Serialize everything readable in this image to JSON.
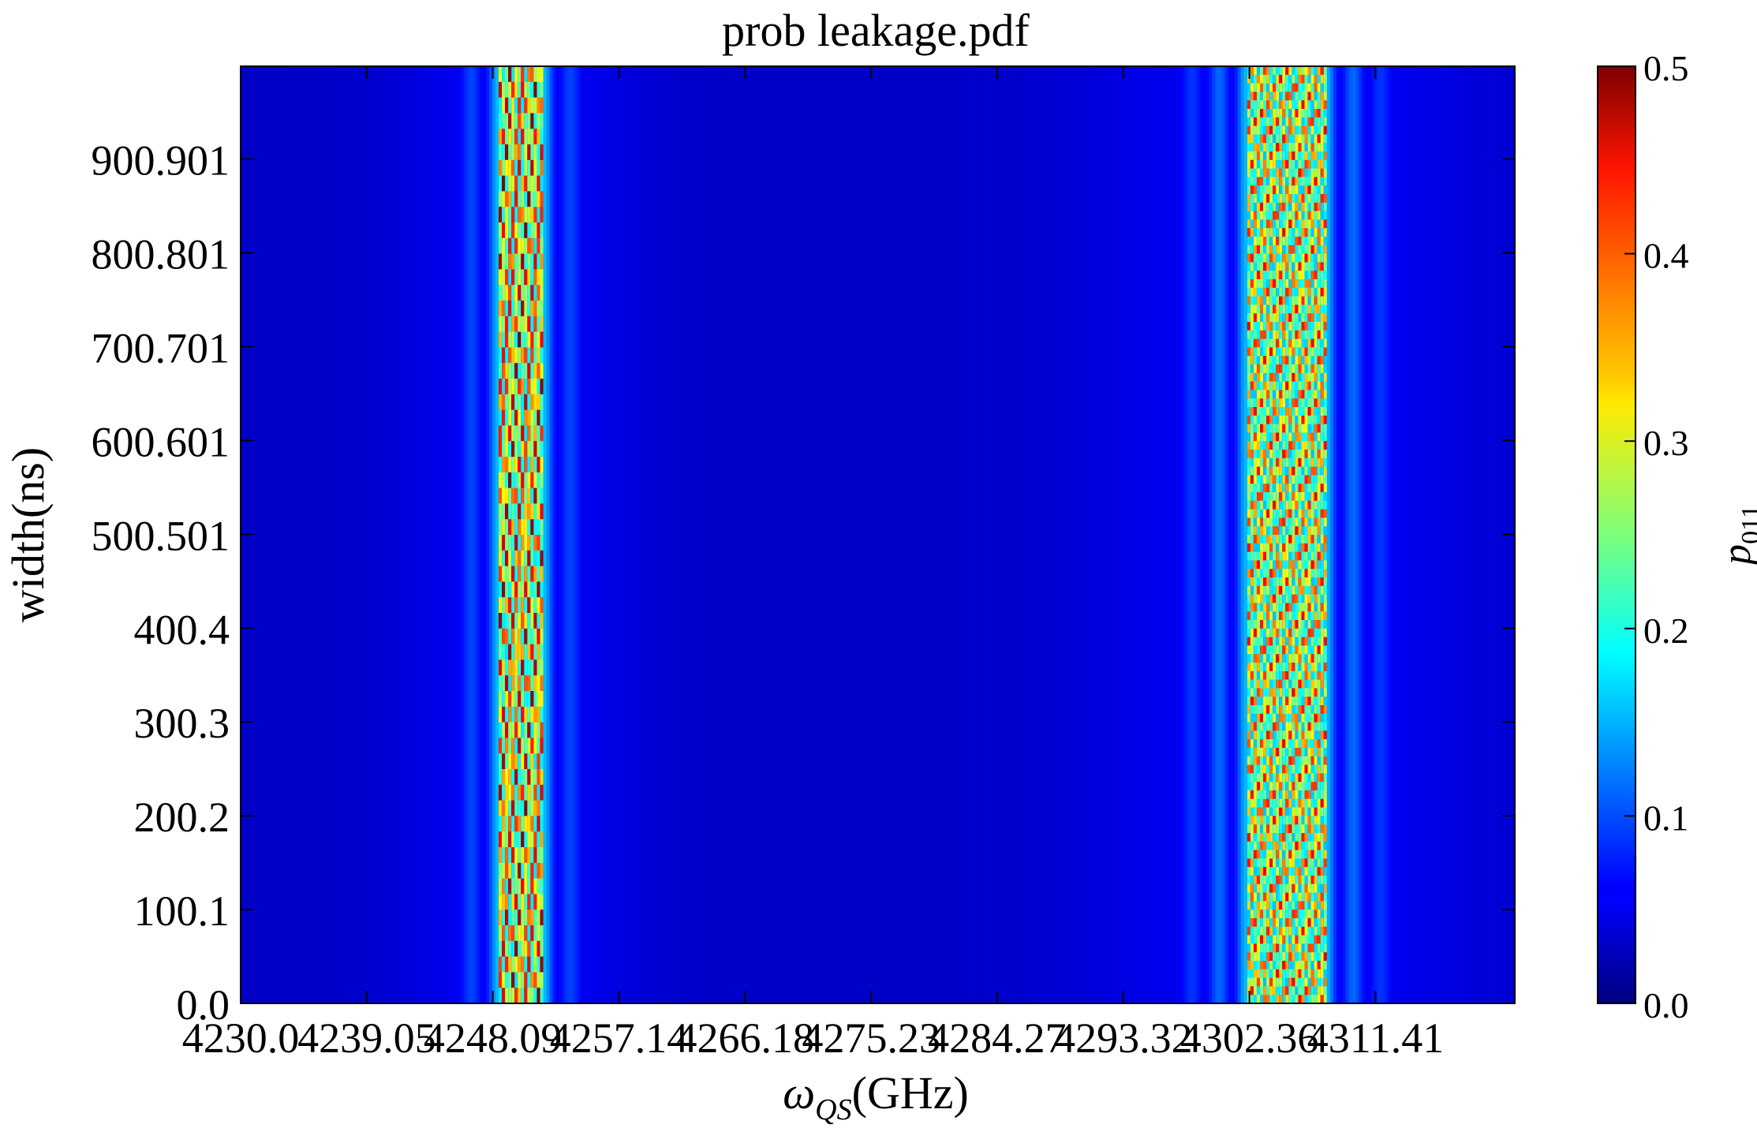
{
  "chart_data": {
    "type": "heatmap",
    "title": "prob leakage.pdf",
    "xlabel": "ω",
    "xlabel_sub": "QS",
    "xlabel_unit": "(GHz)",
    "ylabel": "width(ns)",
    "colorbar_label": "p",
    "colorbar_label_sub": "011",
    "x_ticks": [
      "4230.0",
      "4239.05",
      "4248.09",
      "4257.14",
      "4266.18",
      "4275.23",
      "4284.27",
      "4293.32",
      "4302.36",
      "4311.41"
    ],
    "y_ticks": [
      "0.0",
      "100.1",
      "200.2",
      "300.3",
      "400.4",
      "500.501",
      "600.601",
      "700.701",
      "800.801",
      "900.901"
    ],
    "colorbar_ticks": [
      "0.0",
      "0.1",
      "0.2",
      "0.3",
      "0.4",
      "0.5"
    ],
    "xlim": [
      4230.0,
      4321.4
    ],
    "ylim": [
      0.0,
      1000.0
    ],
    "zlim": [
      0.0,
      0.5
    ],
    "colormap": "jet",
    "grid": false,
    "bands": [
      {
        "center": 4250.1,
        "halfwidth": 1.7,
        "peak": 0.5,
        "pattern": "coarse"
      },
      {
        "center": 4305.0,
        "halfwidth": 2.9,
        "peak": 0.45,
        "pattern": "fine"
      }
    ]
  }
}
